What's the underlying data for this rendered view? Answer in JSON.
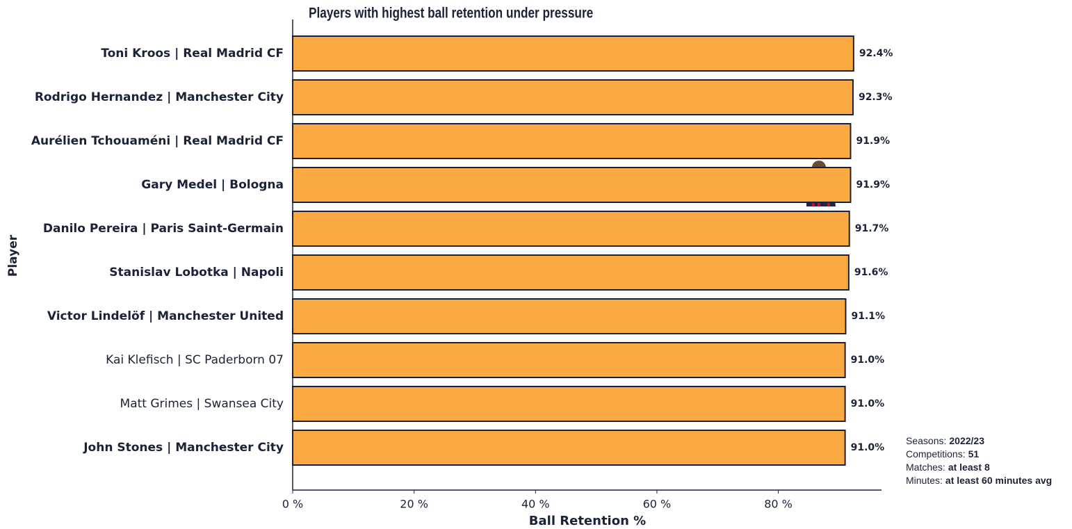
{
  "chart_data": {
    "type": "bar",
    "orientation": "horizontal",
    "title": "Players with highest ball retention under pressure",
    "x_label": "Ball Retention %",
    "y_label": "Player",
    "categories": [
      "Toni Kroos | Real Madrid CF",
      "Rodrigo Hernandez | Manchester City",
      "Aurélien Tchouaméni | Real Madrid CF",
      "Gary Medel | Bologna",
      "Danilo Pereira | Paris Saint-Germain",
      "Stanislav Lobotka | Napoli",
      "Victor Lindelöf | Manchester United",
      "Kai Klefisch | SC Paderborn 07",
      "Matt Grimes | Swansea City",
      "John Stones | Manchester City"
    ],
    "bold_labels": [
      true,
      true,
      true,
      true,
      true,
      true,
      true,
      false,
      false,
      true
    ],
    "values": [
      92.4,
      92.3,
      91.9,
      91.9,
      91.7,
      91.6,
      91.1,
      91.0,
      91.0,
      91.0
    ],
    "value_labels": [
      "92.4%",
      "92.3%",
      "91.9%",
      "91.9%",
      "91.7%",
      "91.6%",
      "91.1%",
      "91.0%",
      "91.0%",
      "91.0%"
    ],
    "color": "#fba943",
    "edge_color": "#1a2238",
    "xlim": [
      0,
      97
    ],
    "xticks": [
      {
        "value": 0,
        "label": "0 %"
      },
      {
        "value": 20,
        "label": "20 %"
      },
      {
        "value": 40,
        "label": "40 %"
      },
      {
        "value": 60,
        "label": "60 %"
      },
      {
        "value": 80,
        "label": "80 %"
      }
    ],
    "grid": false,
    "notes": [
      {
        "label": "Seasons:",
        "value": "2022/23"
      },
      {
        "label": "Competitions:",
        "value": "51"
      },
      {
        "label": "Matches:",
        "value": "at least 8"
      },
      {
        "label": "Minutes:",
        "value": "at least 60 minutes avg"
      }
    ]
  }
}
